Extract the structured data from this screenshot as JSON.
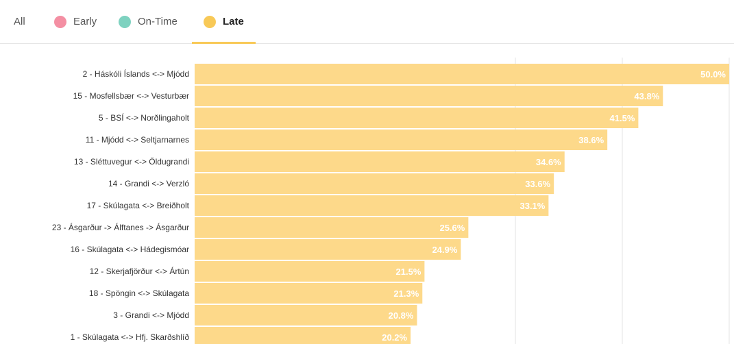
{
  "legend_tabs": [
    {
      "label": "All",
      "color": ""
    },
    {
      "label": "Early",
      "color": "#f48fa3"
    },
    {
      "label": "On-Time",
      "color": "#7ed2c0"
    },
    {
      "label": "Late",
      "color": "#f8c957"
    }
  ],
  "active_tab": "Late",
  "colors": {
    "bar": "#fdd98a",
    "grid": "#e3e3e3",
    "underline": "#f8c957"
  },
  "chart_data": {
    "type": "bar",
    "orientation": "horizontal",
    "series": [
      {
        "name": "Late"
      }
    ],
    "categories": [
      "2 - Háskóli Íslands <-> Mjódd",
      "15 - Mosfellsbær <-> Vesturbær",
      "5 - BSÍ <-> Norðlingaholt",
      "11 - Mjódd <-> Seltjarnarnes",
      "13 - Sléttuvegur <-> Öldugrandi",
      "14 - Grandi <-> Verzló",
      "17 - Skúlagata <-> Breiðholt",
      "23 - Ásgarður -> Álftanes -> Ásgarður",
      "16 - Skúlagata <-> Hádegismóar",
      "12 - Skerjafjörður <-> Ártún",
      "18 - Spöngin <-> Skúlagata",
      "3 - Grandi <-> Mjódd",
      "1 - Skúlagata <-> Hfj. Skarðshlíð"
    ],
    "values": [
      50.0,
      43.8,
      41.5,
      38.6,
      34.6,
      33.6,
      33.1,
      25.6,
      24.9,
      21.5,
      21.3,
      20.8,
      20.2
    ],
    "value_labels": [
      "50.0%",
      "43.8%",
      "41.5%",
      "38.6%",
      "34.6%",
      "33.6%",
      "33.1%",
      "25.6%",
      "24.9%",
      "21.5%",
      "21.3%",
      "20.8%",
      "20.2%"
    ],
    "xlim": [
      0,
      50
    ],
    "grid": true
  }
}
